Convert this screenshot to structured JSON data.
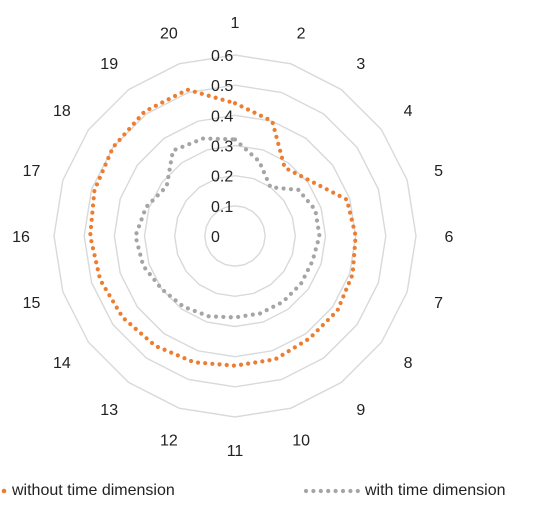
{
  "chart_data": {
    "type": "radar",
    "categories": [
      "1",
      "2",
      "3",
      "4",
      "5",
      "6",
      "7",
      "8",
      "9",
      "10",
      "11",
      "12",
      "13",
      "14",
      "15",
      "16",
      "17",
      "18",
      "19",
      "20"
    ],
    "r_ticks": [
      0,
      0.1,
      0.2,
      0.3,
      0.4,
      0.5,
      0.6
    ],
    "r_tick_labels": [
      "0",
      "0.1",
      "0.2",
      "0.3",
      "0.4",
      "0.5",
      "0.6"
    ],
    "rlim": [
      0,
      0.6
    ],
    "grid": true,
    "legend_position": "bottom",
    "series": [
      {
        "name": "without time dimension",
        "color": "#ED7D31",
        "values": [
          0.44,
          0.4,
          0.28,
          0.31,
          0.39,
          0.4,
          0.41,
          0.42,
          0.42,
          0.43,
          0.43,
          0.44,
          0.45,
          0.46,
          0.47,
          0.48,
          0.49,
          0.5,
          0.51,
          0.51
        ]
      },
      {
        "name": "with time dimension",
        "color": "#A5A5A5",
        "values": [
          0.32,
          0.26,
          0.2,
          0.26,
          0.28,
          0.28,
          0.27,
          0.27,
          0.27,
          0.27,
          0.27,
          0.28,
          0.29,
          0.3,
          0.32,
          0.33,
          0.31,
          0.28,
          0.35,
          0.34
        ]
      }
    ]
  }
}
